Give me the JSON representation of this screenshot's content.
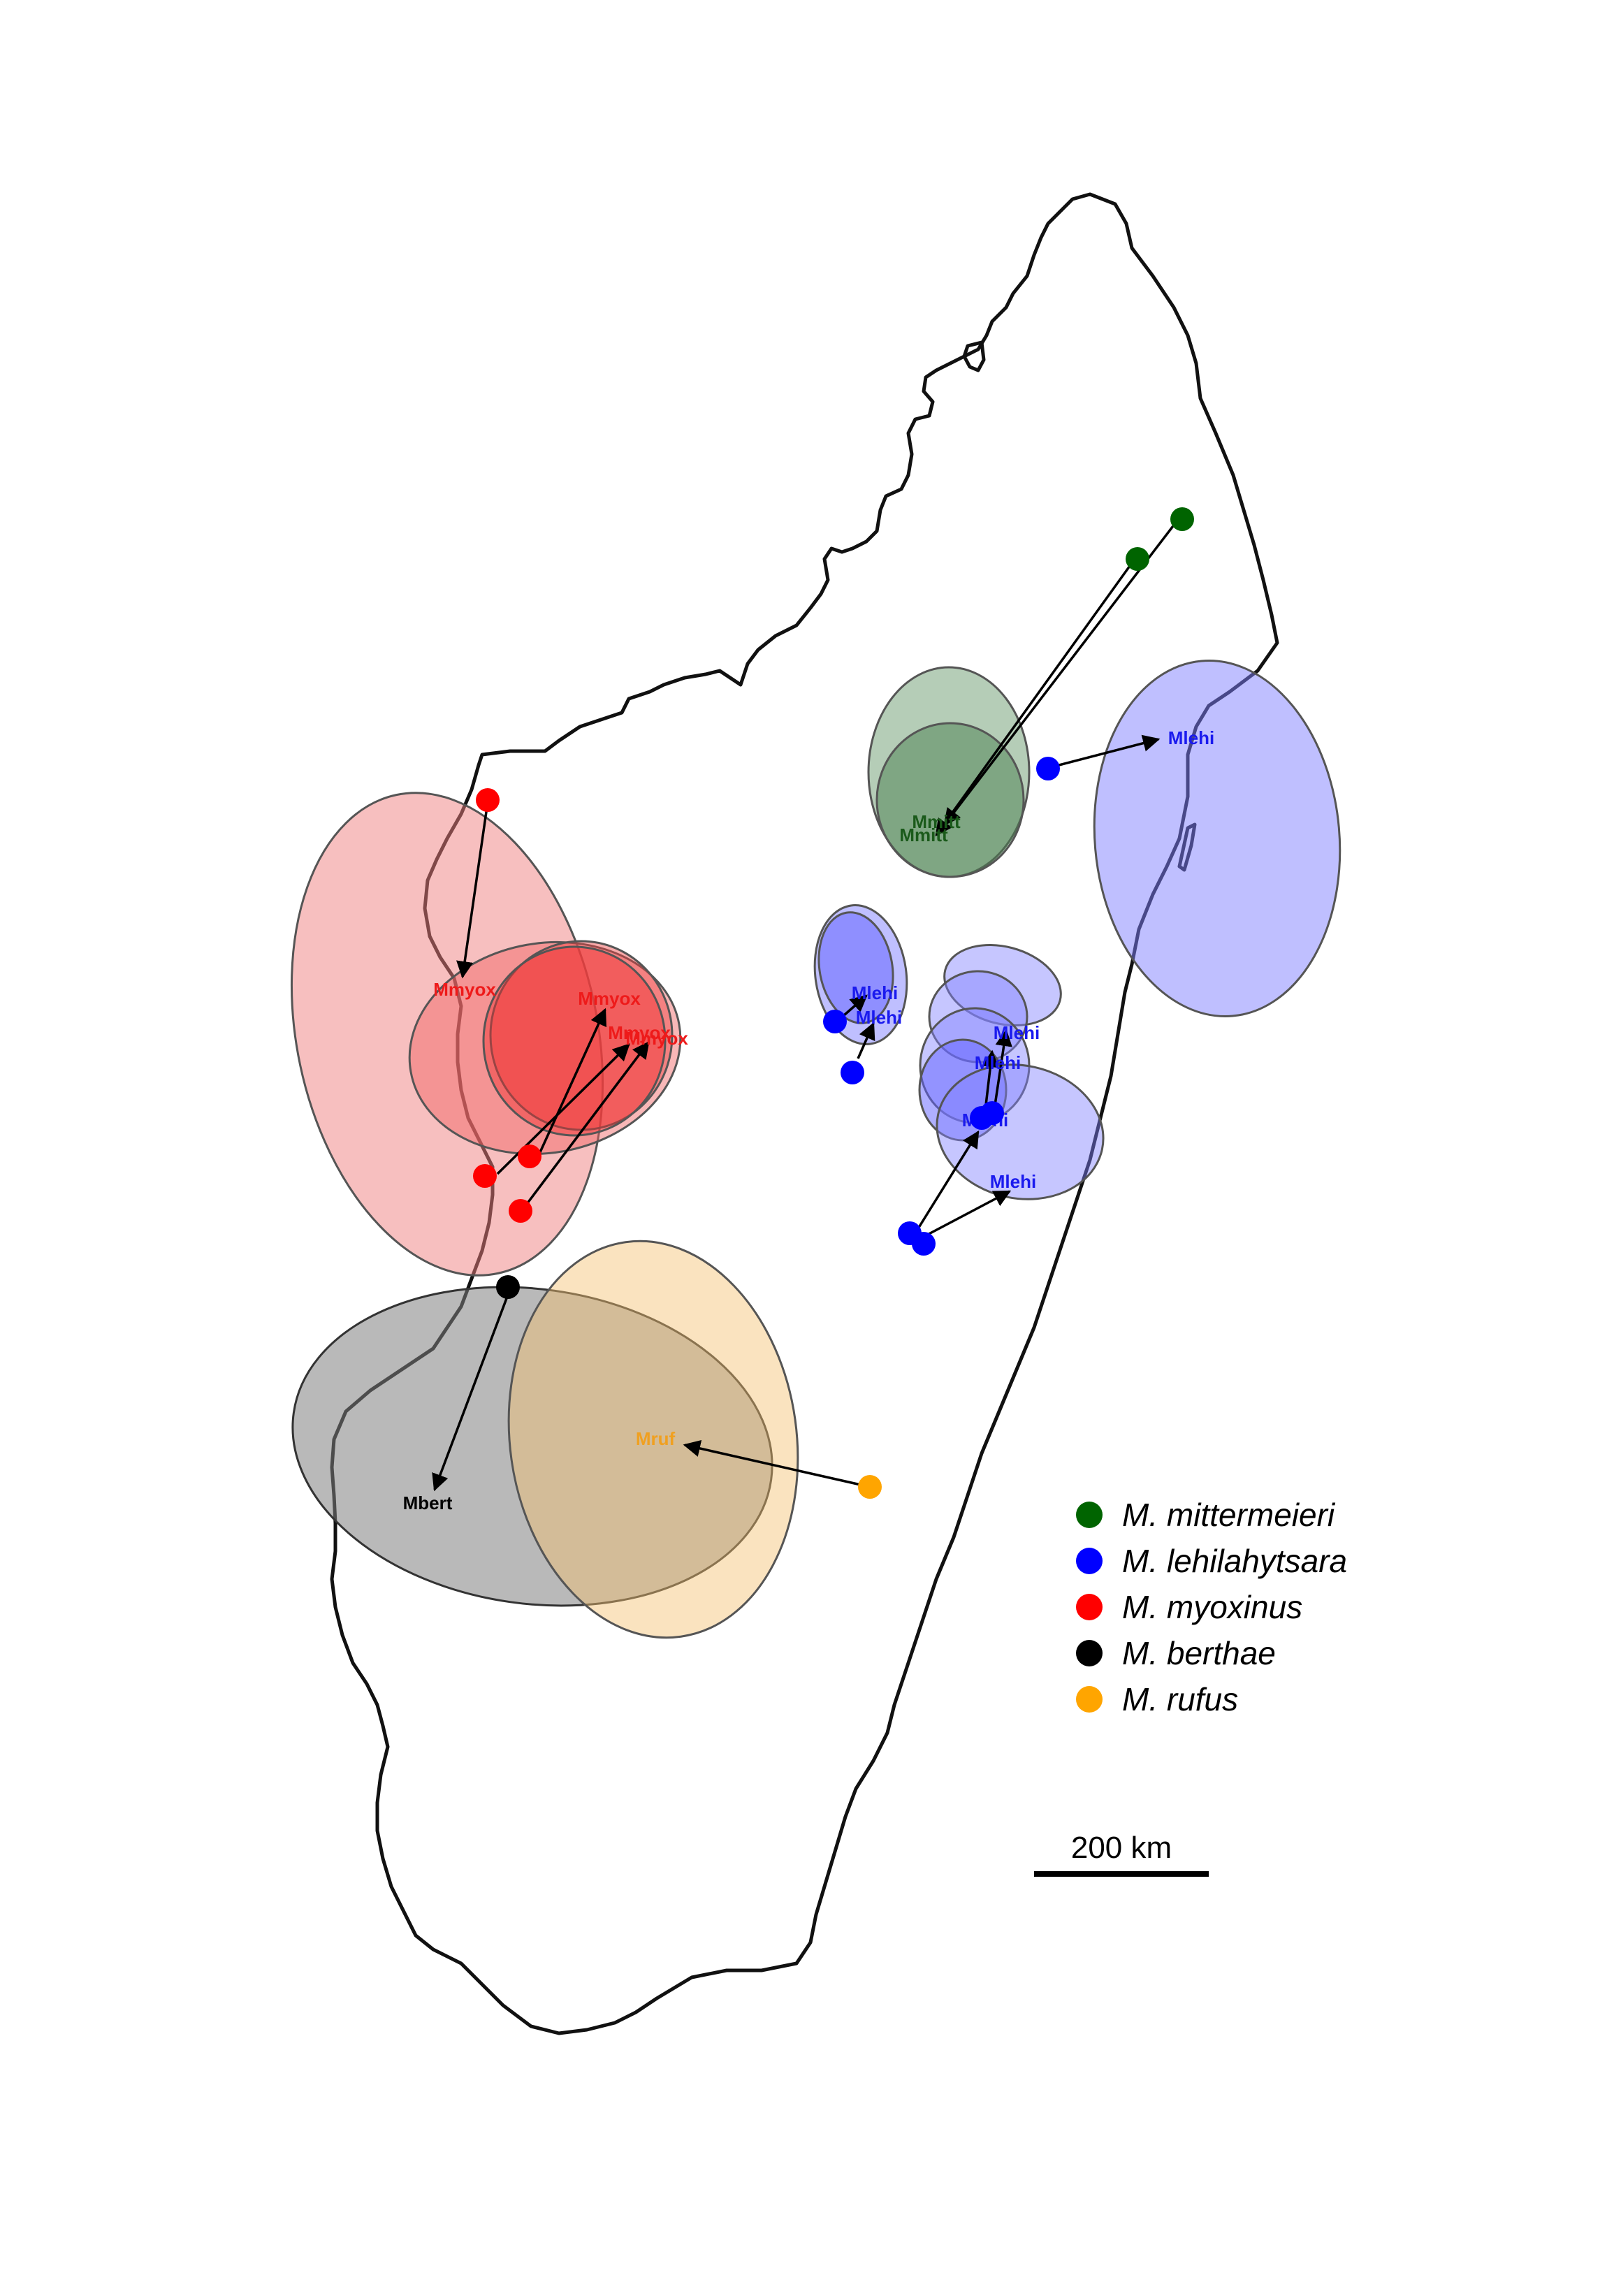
{
  "legend": {
    "items": [
      {
        "label": "M. mittermeieri",
        "color": "#006400"
      },
      {
        "label": "M. lehilahytsara",
        "color": "#0000ff"
      },
      {
        "label": "M. myoxinus",
        "color": "#ff0000"
      },
      {
        "label": "M. berthae",
        "color": "#000000"
      },
      {
        "label": "M. rufus",
        "color": "#ffa500"
      }
    ]
  },
  "scale_bar": {
    "label": "200 km"
  },
  "estimate_labels": {
    "mmitt_a": "Mmitt",
    "mmitt_b": "Mmitt",
    "mlehi_ne": "Mlehi",
    "mlehi_w1": "Mlehi",
    "mlehi_w2": "Mlehi",
    "mlehi_c1": "Mlehi",
    "mlehi_c2": "Mlehi",
    "mlehi_c3": "Mlehi",
    "mlehi_c4": "Mlehi",
    "mmyox_1": "Mmyox",
    "mmyox_2": "Mmyox",
    "mmyox_3": "Mmyox",
    "mmyox_4": "Mmyox",
    "mbert": "Mbert",
    "mruf": "Mruf"
  }
}
